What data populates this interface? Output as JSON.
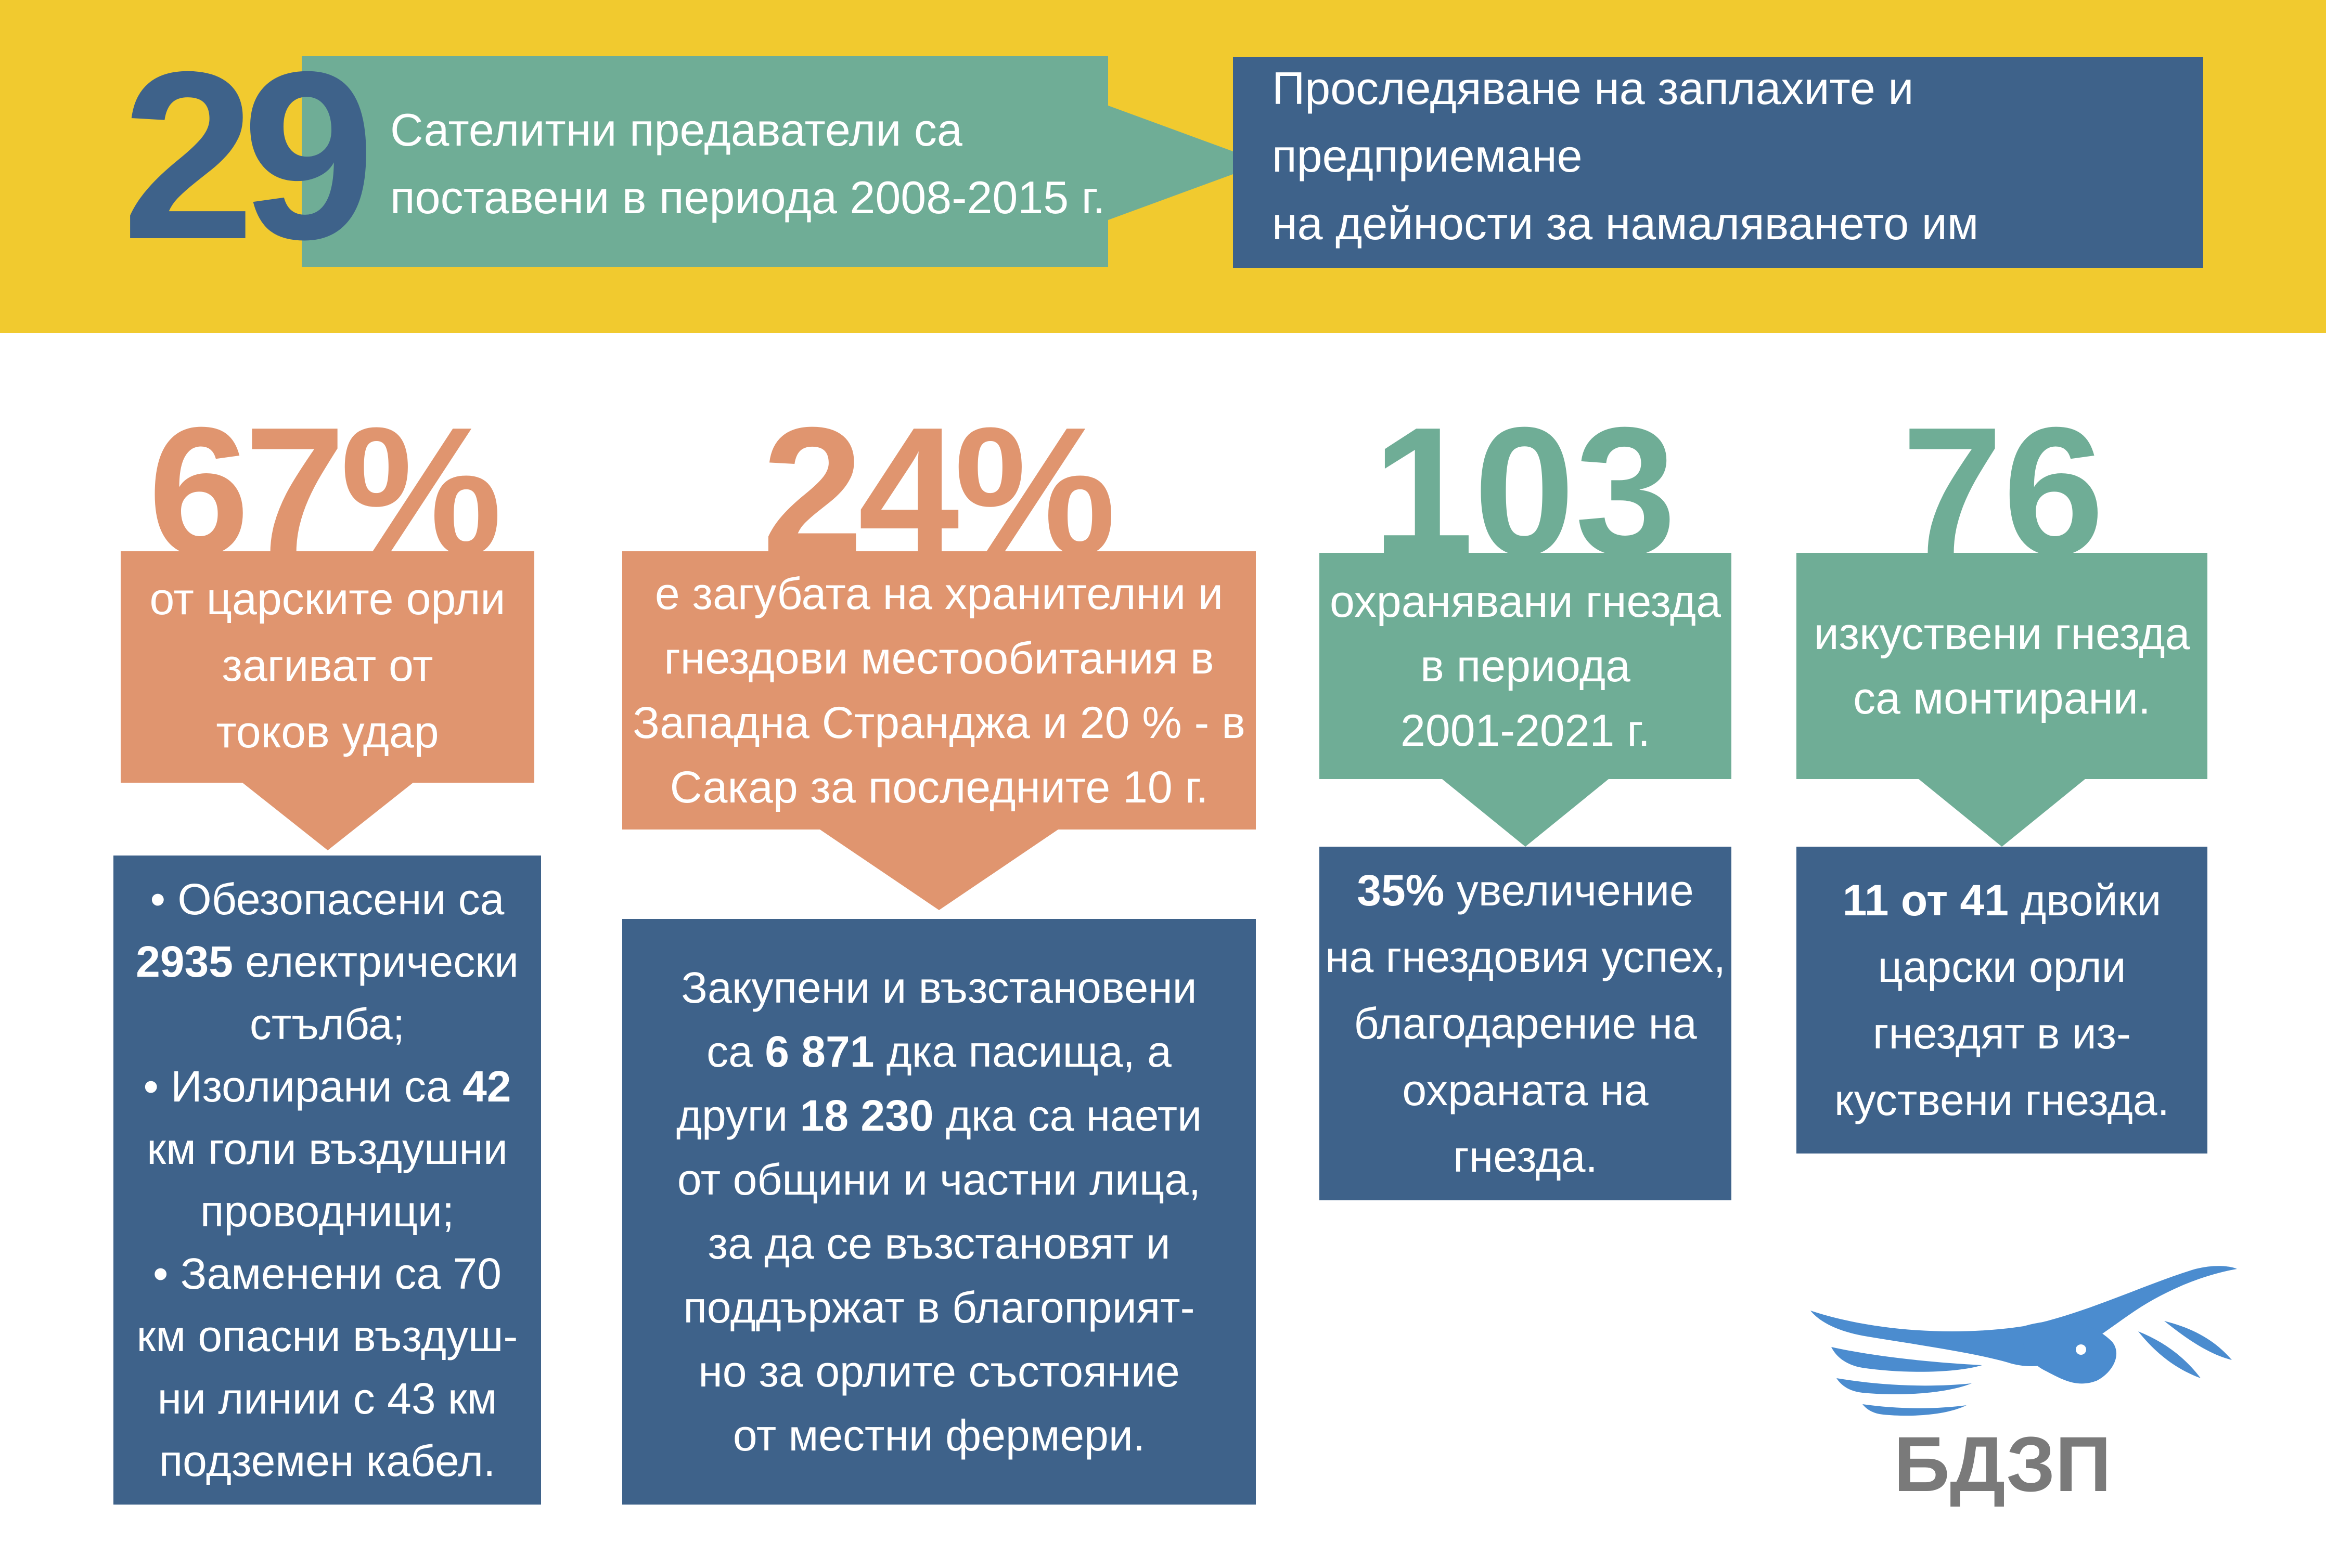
{
  "header": {
    "number": "29",
    "satellite_text_line1": "Сателитни предаватели са",
    "satellite_text_line2": "поставени в периода 2008-2015 г.",
    "goal_text_line1": "Проследяване на заплахите и предприемане",
    "goal_text_line2": "на дейности за намаляването им"
  },
  "stats": [
    {
      "value": "67%",
      "caption_lines": [
        "от царските орли",
        "загиват от",
        "токов удар"
      ],
      "detail_lines": [
        {
          "parts": [
            {
              "t": "• Обезопасени са",
              "b": false
            }
          ]
        },
        {
          "parts": [
            {
              "t": "2935",
              "b": true
            },
            {
              "t": " електрически",
              "b": false
            }
          ]
        },
        {
          "parts": [
            {
              "t": "стълба;",
              "b": false
            }
          ]
        },
        {
          "parts": [
            {
              "t": "• Изолирани са ",
              "b": false
            },
            {
              "t": "42",
              "b": true
            }
          ]
        },
        {
          "parts": [
            {
              "t": "км голи въздушни",
              "b": false
            }
          ]
        },
        {
          "parts": [
            {
              "t": "проводници;",
              "b": false
            }
          ]
        },
        {
          "parts": [
            {
              "t": "• Заменени са 70",
              "b": false
            }
          ]
        },
        {
          "parts": [
            {
              "t": "км опасни въздуш-",
              "b": false
            }
          ]
        },
        {
          "parts": [
            {
              "t": "ни линии с 43 км",
              "b": false
            }
          ]
        },
        {
          "parts": [
            {
              "t": "подземен кабел.",
              "b": false
            }
          ]
        }
      ]
    },
    {
      "value": "24%",
      "caption_lines": [
        "е загубата на хранителни и",
        "гнездови местообитания в",
        "Западна Странджа и 20 % - в",
        "Сакар за последните 10 г."
      ],
      "detail_lines": [
        {
          "parts": [
            {
              "t": "Закупени и възстановени",
              "b": false
            }
          ]
        },
        {
          "parts": [
            {
              "t": "са ",
              "b": false
            },
            {
              "t": "6 871",
              "b": true
            },
            {
              "t": " дка пасища, а",
              "b": false
            }
          ]
        },
        {
          "parts": [
            {
              "t": "други ",
              "b": false
            },
            {
              "t": "18 230",
              "b": true
            },
            {
              "t": " дка са наети",
              "b": false
            }
          ]
        },
        {
          "parts": [
            {
              "t": "от общини и частни лица,",
              "b": false
            }
          ]
        },
        {
          "parts": [
            {
              "t": "за да се възстановят  и",
              "b": false
            }
          ]
        },
        {
          "parts": [
            {
              "t": "поддържат в благоприят-",
              "b": false
            }
          ]
        },
        {
          "parts": [
            {
              "t": "но за орлите състояние",
              "b": false
            }
          ]
        },
        {
          "parts": [
            {
              "t": "от местни фермери.",
              "b": false
            }
          ]
        }
      ]
    },
    {
      "value": "103",
      "caption_lines": [
        "охранявани гнезда",
        "в периода",
        "2001-2021 г."
      ],
      "detail_lines": [
        {
          "parts": [
            {
              "t": "35%",
              "b": true
            },
            {
              "t": " увеличение",
              "b": false
            }
          ]
        },
        {
          "parts": [
            {
              "t": "на гнездовия успех,",
              "b": false
            }
          ]
        },
        {
          "parts": [
            {
              "t": "благодарение на",
              "b": false
            }
          ]
        },
        {
          "parts": [
            {
              "t": "охраната на",
              "b": false
            }
          ]
        },
        {
          "parts": [
            {
              "t": "гнезда.",
              "b": false
            }
          ]
        }
      ]
    },
    {
      "value": "76",
      "caption_lines": [
        "изкуствени гнезда",
        "са монтирани."
      ],
      "detail_lines": [
        {
          "parts": [
            {
              "t": "11 от 41",
              "b": true
            },
            {
              "t": " двойки",
              "b": false
            }
          ]
        },
        {
          "parts": [
            {
              "t": "царски орли",
              "b": false
            }
          ]
        },
        {
          "parts": [
            {
              "t": "гнездят в из-",
              "b": false
            }
          ]
        },
        {
          "parts": [
            {
              "t": "куствени гнезда.",
              "b": false
            }
          ]
        }
      ]
    }
  ],
  "logo": {
    "text": "БДЗП",
    "icon": "eagle-logo-icon"
  },
  "colors": {
    "yellow": "#f1ca2f",
    "teal": "#6fad96",
    "navy": "#3e628a",
    "orange": "#e0956f",
    "white": "#ffffff",
    "grey": "#7a7a7a"
  }
}
